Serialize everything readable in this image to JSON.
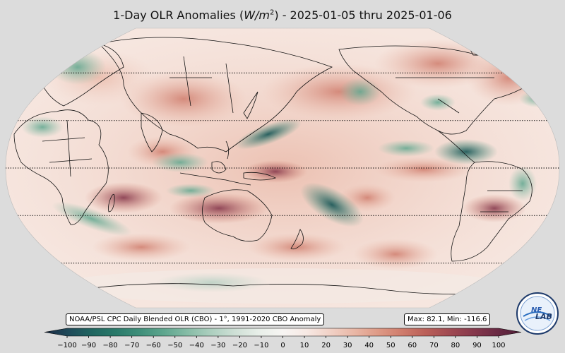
{
  "title": {
    "prefix": "1-Day OLR Anomalies (",
    "unit_base": "W/m",
    "unit_exp": "2",
    "suffix": ") - 2025-01-05 thru 2025-01-06"
  },
  "source_label": "NOAA/PSL CPC Daily Blended OLR (CBO) - 1°, 1991-2020 CBO Anomaly",
  "stats_label": "Max: 82.1,  Min: -116.6",
  "logo": {
    "text": "NE LAB",
    "line1": "NE",
    "line2": "LAB"
  },
  "colorbar": {
    "ticks": [
      "−100",
      "−90",
      "−80",
      "−70",
      "−60",
      "−50",
      "−40",
      "−30",
      "−20",
      "−10",
      "0",
      "10",
      "20",
      "30",
      "40",
      "50",
      "60",
      "70",
      "80",
      "90",
      "100"
    ],
    "min": -100,
    "max": 100,
    "colors": [
      "#1b2a44",
      "#1f4a5a",
      "#206660",
      "#2a7a6a",
      "#3f8f7a",
      "#5ea68e",
      "#86bca6",
      "#adcfbf",
      "#cfe0d6",
      "#e8efe9",
      "#f7f5f3",
      "#f7e9e4",
      "#f1d1c6",
      "#e9b7a6",
      "#de9a86",
      "#cf7c6c",
      "#ba5f58",
      "#a04a52",
      "#86384c",
      "#6a2a44",
      "#4f1d36"
    ]
  },
  "map": {
    "projection": "Robinson",
    "center_longitude": 180,
    "latitude_lines_deg": [
      -60,
      -30,
      0,
      30,
      60
    ]
  }
}
